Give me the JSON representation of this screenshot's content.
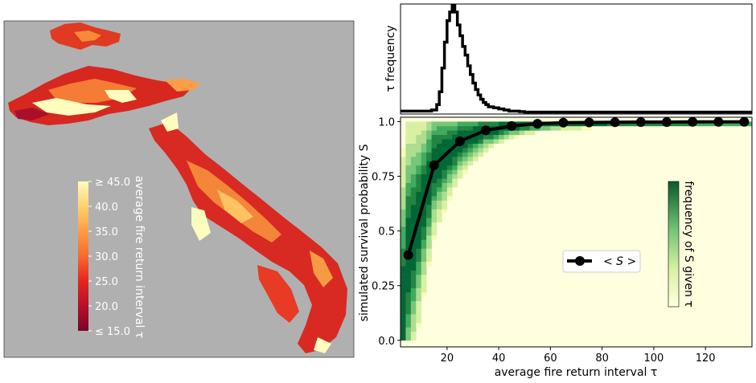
{
  "map_panel": {
    "colorbar": {
      "label": "average fire return interval τ",
      "tick_labels": [
        "≥ 45.0",
        "40.0",
        "35.0",
        "30.0",
        "25.0",
        "20.0",
        "≤ 15.0"
      ],
      "tick_values": [
        45,
        40,
        35,
        30,
        25,
        20,
        15
      ],
      "range": [
        15,
        45
      ],
      "colormap": [
        "#7a0428",
        "#b7112a",
        "#e3261f",
        "#f56a30",
        "#fd9e47",
        "#fed06e",
        "#fffcbf"
      ]
    },
    "background_color": "#b0b0b0"
  },
  "chart_data": [
    {
      "type": "histogram",
      "ylabel": "τ frequency",
      "xlim": [
        2,
        138
      ],
      "bins_x": [
        4,
        6,
        8,
        10,
        12,
        14,
        16,
        17,
        18,
        19,
        20,
        21,
        22,
        23,
        24,
        25,
        26,
        27,
        28,
        29,
        30,
        31,
        32,
        33,
        34,
        35,
        36,
        38,
        40,
        42,
        44,
        46,
        48,
        50,
        55,
        60,
        70,
        80,
        90,
        100,
        110,
        120,
        138
      ],
      "bins_y": [
        0.02,
        0.02,
        0.02,
        0.02,
        0.02,
        0.03,
        0.08,
        0.2,
        0.42,
        0.66,
        0.86,
        0.94,
        1.0,
        0.94,
        0.82,
        0.72,
        0.62,
        0.54,
        0.44,
        0.36,
        0.28,
        0.22,
        0.17,
        0.13,
        0.1,
        0.08,
        0.06,
        0.05,
        0.04,
        0.03,
        0.02,
        0.02,
        0.015,
        0.01,
        0.01,
        0.01,
        0.01,
        0.01,
        0.01,
        0.01,
        0.01,
        0.01
      ],
      "ylim": [
        0,
        1.0
      ]
    },
    {
      "type": "heatmap",
      "xlabel": "average fire return interval τ",
      "ylabel": "simulated survival probability S",
      "xlim": [
        2,
        138
      ],
      "ylim": [
        -0.03,
        1.02
      ],
      "x_ticks": [
        20,
        40,
        60,
        80,
        100,
        120
      ],
      "y_ticks": [
        0.0,
        0.25,
        0.5,
        0.75,
        1.0
      ],
      "y_tick_labels": [
        "0.0",
        "0.25",
        "0.5",
        "0.75",
        "1.0"
      ],
      "colorbar_label": "frequency of S given τ",
      "mean_curve": {
        "name": "< S >",
        "x": [
          5,
          15,
          25,
          35,
          45,
          55,
          65,
          75,
          85,
          95,
          105,
          115,
          125,
          135
        ],
        "y": [
          0.39,
          0.8,
          0.91,
          0.96,
          0.98,
          0.99,
          0.995,
          0.996,
          0.997,
          0.998,
          0.998,
          0.999,
          0.999,
          0.999
        ]
      }
    }
  ]
}
